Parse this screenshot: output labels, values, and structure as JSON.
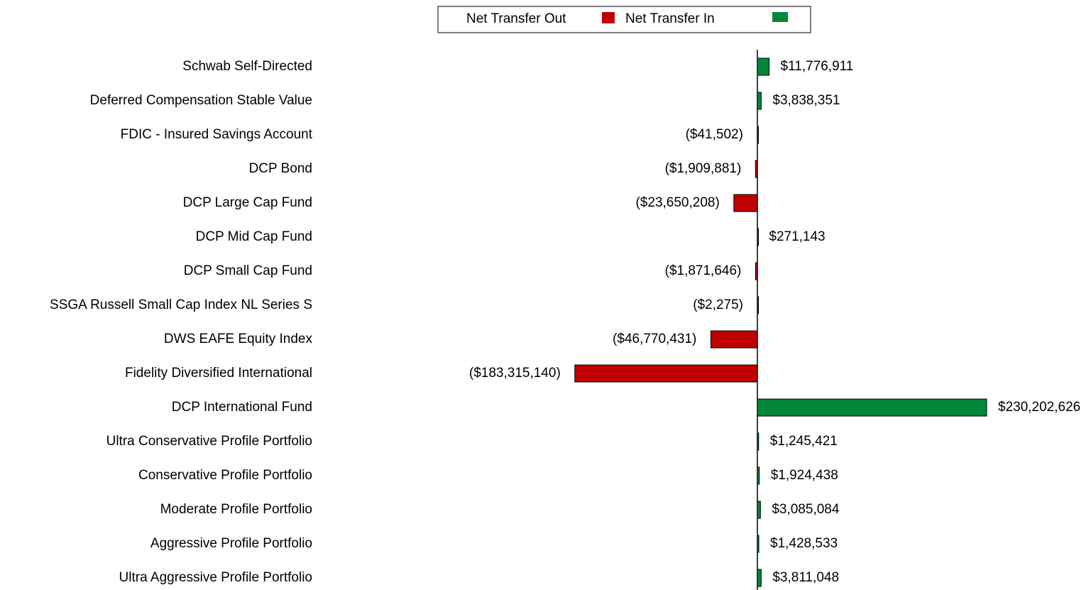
{
  "chart_data": {
    "type": "bar",
    "orientation": "horizontal",
    "categories": [
      "Schwab Self-Directed",
      "Deferred Compensation Stable Value",
      "FDIC - Insured Savings Account",
      "DCP Bond",
      "DCP Large Cap Fund",
      "DCP Mid Cap Fund",
      "DCP Small Cap Fund",
      "SSGA Russell Small Cap Index NL Series S",
      "DWS EAFE Equity Index",
      "Fidelity Diversified International",
      "DCP International  Fund",
      "Ultra Conservative Profile Portfolio",
      "Conservative Profile Portfolio",
      "Moderate Profile Portfolio",
      "Aggressive Profile Portfolio",
      "Ultra Aggressive Profile Portfolio"
    ],
    "series": [
      {
        "name": "Net Transfer Out",
        "color": "#c00000",
        "values": [
          null,
          null,
          -41502,
          -1909881,
          -23650208,
          null,
          -1871646,
          -2275,
          -46770431,
          -183315140,
          null,
          null,
          null,
          null,
          null,
          null
        ],
        "value_labels": [
          null,
          null,
          "($41,502)",
          "($1,909,881)",
          "($23,650,208)",
          null,
          "($1,871,646)",
          "($2,275)",
          "($46,770,431)",
          "($183,315,140)",
          null,
          null,
          null,
          null,
          null,
          null
        ]
      },
      {
        "name": "Net Transfer In",
        "color": "#00873c",
        "values": [
          11776911,
          3838351,
          null,
          null,
          null,
          271143,
          null,
          null,
          null,
          null,
          230202626,
          1245421,
          1924438,
          3085084,
          1428533,
          3811048
        ],
        "value_labels": [
          "$11,776,911",
          "$3,838,351",
          null,
          null,
          null,
          "$271,143",
          null,
          null,
          null,
          null,
          "$230,202,626",
          "$1,245,421",
          "$1,924,438",
          "$3,085,084",
          "$1,428,533",
          "$3,811,048"
        ]
      }
    ]
  }
}
